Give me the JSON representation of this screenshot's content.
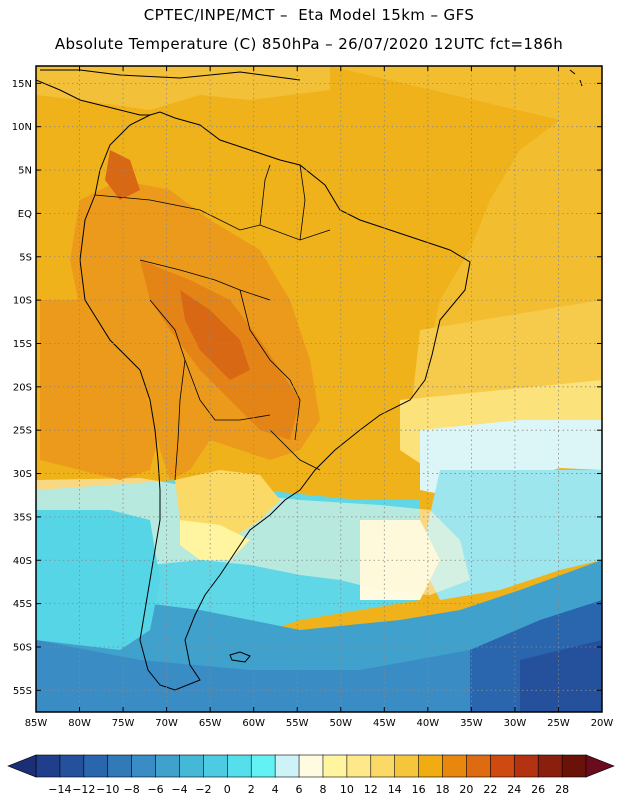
{
  "header": {
    "title_line1": "CPTEC/INPE/MCT –  Eta Model 15km – GFS",
    "title_line2": "Absolute Temperature (C) 850hPa – 26/07/2020 12UTC fct=186h"
  },
  "map": {
    "lat_labels": [
      "15N",
      "10N",
      "5N",
      "EQ",
      "5S",
      "10S",
      "15S",
      "20S",
      "25S",
      "30S",
      "35S",
      "40S",
      "45S",
      "50S",
      "55S"
    ],
    "lon_labels": [
      "85W",
      "80W",
      "75W",
      "70W",
      "65W",
      "60W",
      "55W",
      "50W",
      "45W",
      "40W",
      "35W",
      "30W",
      "25W",
      "20W"
    ],
    "lon_range": [
      -85,
      -20
    ],
    "lat_range": [
      -57.5,
      17
    ],
    "grid": "dotted"
  },
  "colorbar": {
    "labels": [
      "-14",
      "-12",
      "-10",
      "-8",
      "-6",
      "-4",
      "-2",
      "0",
      "2",
      "4",
      "6",
      "8",
      "10",
      "12",
      "14",
      "16",
      "18",
      "20",
      "22",
      "24",
      "26",
      "28"
    ],
    "colors": [
      "#1f3f8c",
      "#24509c",
      "#2a66ad",
      "#3279b8",
      "#3a8dc4",
      "#3fa1cc",
      "#45b7d7",
      "#4ccbe2",
      "#55dfec",
      "#63f2f4",
      "#cdf3f8",
      "#fffbe0",
      "#fff5a0",
      "#fde98a",
      "#fbd966",
      "#f5c53c",
      "#f0ac10",
      "#e8870e",
      "#de6a12",
      "#cf4a10",
      "#b23212",
      "#8a1f0e",
      "#6a1208"
    ]
  }
}
